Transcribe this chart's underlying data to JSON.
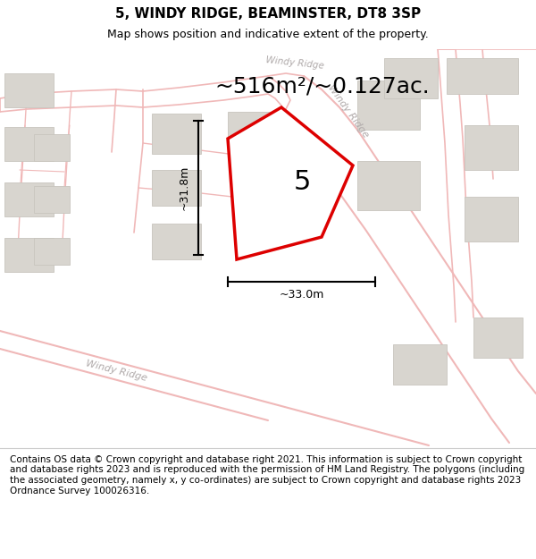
{
  "title": "5, WINDY RIDGE, BEAMINSTER, DT8 3SP",
  "subtitle": "Map shows position and indicative extent of the property.",
  "area_text": "~516m²/~0.127ac.",
  "dim_h": "~33.0m",
  "dim_v": "~31.8m",
  "plot_label": "5",
  "footer": "Contains OS data © Crown copyright and database right 2021. This information is subject to Crown copyright and database rights 2023 and is reproduced with the permission of HM Land Registry. The polygons (including the associated geometry, namely x, y co-ordinates) are subject to Crown copyright and database rights 2023 Ordnance Survey 100026316.",
  "bg_color": "#f5f3f0",
  "plot_color": "#dd0000",
  "building_color": "#d8d5cf",
  "building_edge": "#c8c5be",
  "road_color": "#f0b8b8",
  "street_label_color": "#b0aaaa",
  "title_fontsize": 11,
  "subtitle_fontsize": 9,
  "area_fontsize": 18,
  "footer_fontsize": 7.5,
  "label_fontsize": 22
}
